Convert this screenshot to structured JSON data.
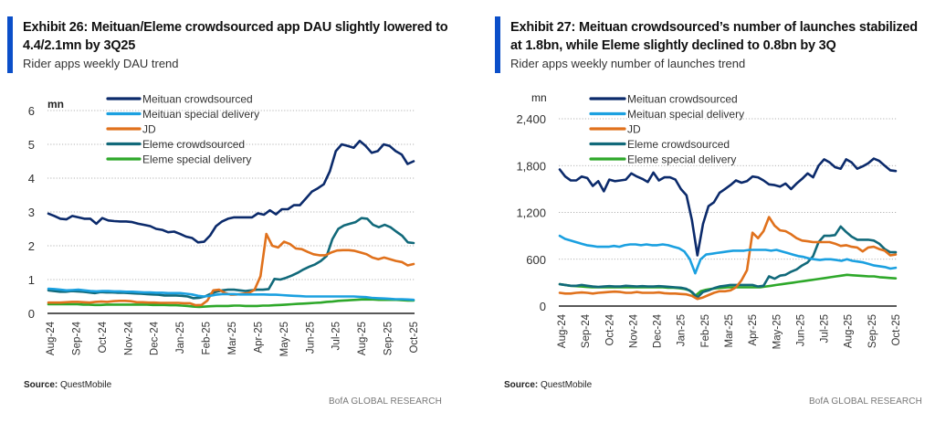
{
  "source_label": "Source:",
  "source_value": "QuestMobile",
  "brand": "BofA GLOBAL RESEARCH",
  "chart_data": [
    {
      "type": "line",
      "title": "Exhibit 26: Meituan/Eleme crowdsourced app DAU slightly lowered to 4.4/2.1mn by 3Q25",
      "subtitle": "Rider apps weekly DAU trend",
      "ylabel": "mn",
      "xlabel": "",
      "ylim": [
        0,
        6
      ],
      "yticks": [
        "0",
        "1",
        "2",
        "3",
        "4",
        "5",
        "6"
      ],
      "ytick_values": [
        0,
        1,
        2,
        3,
        4,
        5,
        6
      ],
      "grid": true,
      "legend_position": "top-center",
      "categories": [
        "Aug-24",
        "Sep-24",
        "Oct-24",
        "Nov-24",
        "Dec-24",
        "Jan-25",
        "Feb-25",
        "Mar-25",
        "Apr-25",
        "May-25",
        "Jun-25",
        "Jul-25",
        "Aug-25",
        "Sep-25",
        "Oct-25"
      ],
      "series": [
        {
          "name": "Meituan crowdsourced",
          "color": "#0b2a6b",
          "values": [
            2.95,
            2.88,
            2.8,
            2.78,
            2.88,
            2.84,
            2.8,
            2.8,
            2.65,
            2.82,
            2.75,
            2.73,
            2.72,
            2.72,
            2.7,
            2.65,
            2.62,
            2.58,
            2.5,
            2.47,
            2.4,
            2.42,
            2.35,
            2.27,
            2.23,
            2.1,
            2.12,
            2.3,
            2.58,
            2.72,
            2.8,
            2.84,
            2.84,
            2.84,
            2.84,
            2.96,
            2.92,
            3.05,
            2.93,
            3.08,
            3.08,
            3.2,
            3.2,
            3.4,
            3.6,
            3.7,
            3.82,
            4.2,
            4.8,
            5.0,
            4.95,
            4.9,
            5.1,
            4.95,
            4.75,
            4.8,
            5.0,
            4.95,
            4.8,
            4.7,
            4.42,
            4.5
          ]
        },
        {
          "name": "Meituan special delivery",
          "color": "#1ba0e0",
          "values": [
            0.73,
            0.72,
            0.7,
            0.68,
            0.69,
            0.7,
            0.68,
            0.66,
            0.65,
            0.66,
            0.66,
            0.65,
            0.65,
            0.64,
            0.64,
            0.63,
            0.62,
            0.62,
            0.61,
            0.61,
            0.6,
            0.6,
            0.6,
            0.58,
            0.56,
            0.52,
            0.5,
            0.52,
            0.55,
            0.57,
            0.57,
            0.57,
            0.56,
            0.56,
            0.56,
            0.56,
            0.56,
            0.55,
            0.55,
            0.54,
            0.53,
            0.52,
            0.51,
            0.5,
            0.5,
            0.5,
            0.5,
            0.5,
            0.5,
            0.5,
            0.5,
            0.5,
            0.49,
            0.48,
            0.46,
            0.45,
            0.44,
            0.43,
            0.42,
            0.42,
            0.41,
            0.4
          ]
        },
        {
          "name": "JD",
          "color": "#e0711c",
          "values": [
            0.32,
            0.32,
            0.32,
            0.33,
            0.34,
            0.34,
            0.33,
            0.32,
            0.34,
            0.35,
            0.34,
            0.36,
            0.37,
            0.37,
            0.36,
            0.33,
            0.33,
            0.32,
            0.32,
            0.31,
            0.31,
            0.31,
            0.31,
            0.3,
            0.3,
            0.24,
            0.25,
            0.38,
            0.68,
            0.7,
            0.6,
            0.55,
            0.56,
            0.58,
            0.6,
            0.7,
            1.1,
            2.35,
            2.0,
            1.95,
            2.12,
            2.05,
            1.92,
            1.9,
            1.82,
            1.75,
            1.72,
            1.72,
            1.8,
            1.86,
            1.87,
            1.87,
            1.85,
            1.8,
            1.75,
            1.65,
            1.6,
            1.65,
            1.6,
            1.55,
            1.52,
            1.42,
            1.46
          ]
        },
        {
          "name": "Eleme crowdsourced",
          "color": "#11697a",
          "values": [
            0.68,
            0.66,
            0.64,
            0.64,
            0.66,
            0.65,
            0.64,
            0.62,
            0.6,
            0.63,
            0.62,
            0.62,
            0.61,
            0.61,
            0.6,
            0.59,
            0.58,
            0.57,
            0.56,
            0.55,
            0.53,
            0.53,
            0.53,
            0.52,
            0.5,
            0.45,
            0.46,
            0.5,
            0.58,
            0.64,
            0.68,
            0.7,
            0.7,
            0.68,
            0.66,
            0.68,
            0.7,
            0.7,
            0.72,
            1.02,
            1.0,
            1.05,
            1.12,
            1.2,
            1.3,
            1.38,
            1.45,
            1.55,
            1.7,
            2.2,
            2.5,
            2.6,
            2.65,
            2.7,
            2.82,
            2.8,
            2.62,
            2.55,
            2.62,
            2.55,
            2.42,
            2.3,
            2.1,
            2.08
          ]
        },
        {
          "name": "Eleme special delivery",
          "color": "#2ea82a",
          "values": [
            0.27,
            0.27,
            0.27,
            0.27,
            0.27,
            0.27,
            0.26,
            0.26,
            0.25,
            0.25,
            0.26,
            0.26,
            0.26,
            0.26,
            0.26,
            0.26,
            0.26,
            0.26,
            0.25,
            0.25,
            0.25,
            0.24,
            0.24,
            0.23,
            0.22,
            0.2,
            0.19,
            0.2,
            0.21,
            0.22,
            0.22,
            0.22,
            0.23,
            0.23,
            0.22,
            0.22,
            0.22,
            0.23,
            0.23,
            0.24,
            0.25,
            0.26,
            0.27,
            0.28,
            0.29,
            0.3,
            0.31,
            0.32,
            0.34,
            0.35,
            0.37,
            0.38,
            0.39,
            0.4,
            0.41,
            0.41,
            0.41,
            0.4,
            0.4,
            0.4,
            0.4,
            0.39,
            0.38,
            0.38
          ]
        }
      ]
    },
    {
      "type": "line",
      "title": "Exhibit 27: Meituan crowdsourced’s number of launches stabilized at 1.8bn, while Eleme slightly declined to 0.8bn by 3Q",
      "subtitle": "Rider apps weekly number of launches trend",
      "ylabel": "mn",
      "xlabel": "",
      "ylim": [
        0,
        2400
      ],
      "yticks": [
        "0",
        "600",
        "1,200",
        "1,800",
        "2,400"
      ],
      "ytick_values": [
        0,
        600,
        1200,
        1800,
        2400
      ],
      "grid": true,
      "legend_position": "top-center",
      "categories": [
        "Aug-24",
        "Sep-24",
        "Oct-24",
        "Nov-24",
        "Dec-24",
        "Jan-25",
        "Feb-25",
        "Mar-25",
        "Apr-25",
        "May-25",
        "Jun-25",
        "Jul-25",
        "Aug-25",
        "Sep-25",
        "Oct-25"
      ],
      "series": [
        {
          "name": "Meituan crowdsourced",
          "color": "#0b2a6b",
          "values": [
            1750,
            1660,
            1610,
            1610,
            1660,
            1640,
            1540,
            1600,
            1470,
            1620,
            1600,
            1610,
            1620,
            1700,
            1660,
            1630,
            1590,
            1710,
            1610,
            1650,
            1650,
            1620,
            1500,
            1420,
            1100,
            650,
            1050,
            1280,
            1330,
            1450,
            1500,
            1550,
            1610,
            1580,
            1600,
            1660,
            1650,
            1610,
            1560,
            1550,
            1530,
            1570,
            1500,
            1570,
            1630,
            1700,
            1650,
            1800,
            1880,
            1840,
            1780,
            1760,
            1880,
            1840,
            1760,
            1790,
            1830,
            1890,
            1860,
            1800,
            1740,
            1730
          ]
        },
        {
          "name": "Meituan special delivery",
          "color": "#1ba0e0",
          "values": [
            900,
            860,
            840,
            820,
            800,
            780,
            770,
            760,
            760,
            760,
            770,
            760,
            780,
            790,
            790,
            780,
            790,
            780,
            780,
            790,
            780,
            760,
            740,
            700,
            600,
            420,
            600,
            660,
            670,
            680,
            690,
            700,
            710,
            710,
            710,
            720,
            720,
            720,
            720,
            710,
            720,
            700,
            680,
            660,
            640,
            630,
            610,
            600,
            590,
            600,
            600,
            590,
            580,
            600,
            580,
            570,
            560,
            540,
            520,
            510,
            500,
            480,
            490
          ]
        },
        {
          "name": "JD",
          "color": "#e0711c",
          "values": [
            170,
            160,
            160,
            170,
            175,
            170,
            160,
            170,
            175,
            180,
            185,
            180,
            170,
            170,
            180,
            170,
            170,
            170,
            175,
            165,
            160,
            160,
            155,
            150,
            130,
            90,
            110,
            140,
            170,
            190,
            190,
            200,
            240,
            330,
            460,
            940,
            870,
            960,
            1140,
            1030,
            970,
            960,
            920,
            870,
            840,
            830,
            820,
            820,
            820,
            820,
            800,
            770,
            780,
            760,
            750,
            700,
            750,
            760,
            730,
            710,
            650,
            660
          ]
        },
        {
          "name": "Eleme crowdsourced",
          "color": "#11697a",
          "values": [
            280,
            270,
            260,
            260,
            270,
            260,
            250,
            245,
            250,
            255,
            250,
            250,
            260,
            255,
            250,
            255,
            250,
            250,
            255,
            250,
            245,
            240,
            235,
            220,
            180,
            110,
            180,
            200,
            230,
            250,
            260,
            270,
            270,
            270,
            270,
            270,
            250,
            260,
            380,
            350,
            390,
            400,
            440,
            470,
            520,
            560,
            640,
            820,
            900,
            900,
            910,
            1020,
            950,
            890,
            850,
            850,
            850,
            840,
            800,
            730,
            690,
            690
          ]
        },
        {
          "name": "Eleme special delivery",
          "color": "#2ea82a",
          "values": [
            280,
            270,
            260,
            255,
            250,
            245,
            240,
            240,
            240,
            240,
            240,
            240,
            240,
            240,
            240,
            240,
            240,
            240,
            240,
            240,
            235,
            235,
            230,
            220,
            200,
            130,
            190,
            210,
            220,
            230,
            235,
            240,
            240,
            240,
            240,
            240,
            240,
            240,
            250,
            260,
            270,
            280,
            290,
            300,
            310,
            320,
            330,
            340,
            350,
            360,
            370,
            380,
            390,
            400,
            395,
            390,
            385,
            380,
            380,
            370,
            365,
            360,
            355
          ]
        }
      ]
    }
  ],
  "panels": [
    {
      "title": "Exhibit 26: Meituan/Eleme crowdsourced app DAU slightly lowered to 4.4/2.1mn by 3Q25",
      "subtitle": "Rider apps weekly DAU trend"
    },
    {
      "title": "Exhibit 27: Meituan crowdsourced’s number of launches stabilized at 1.8bn, while Eleme slightly declined to 0.8bn by 3Q",
      "subtitle": "Rider apps weekly number of launches trend"
    }
  ]
}
